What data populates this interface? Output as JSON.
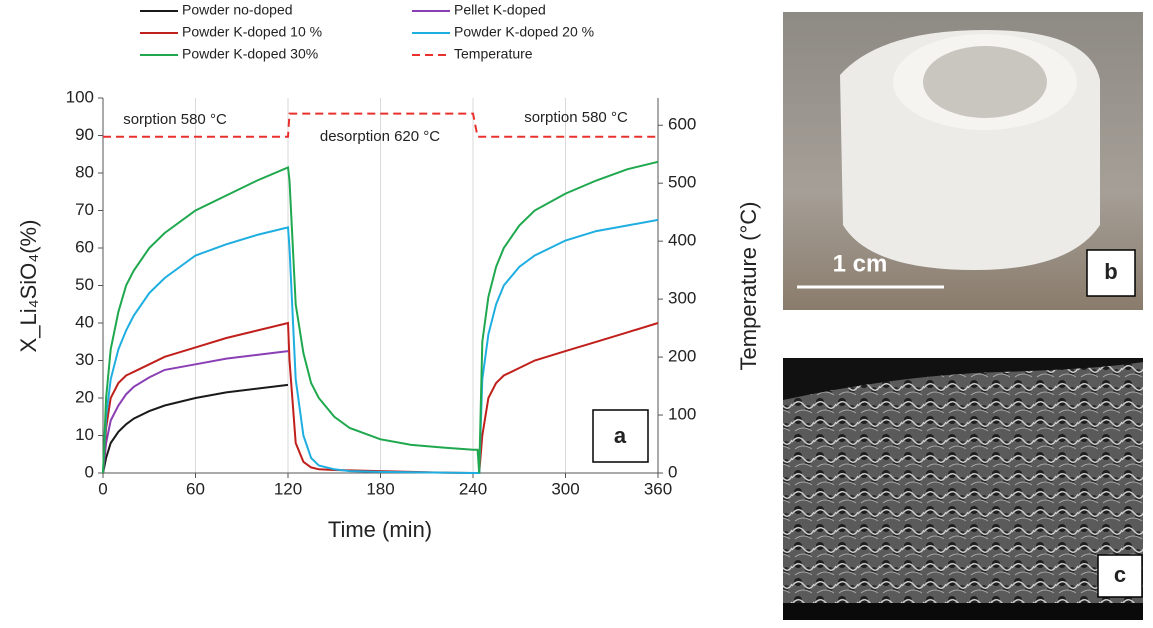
{
  "chart_data": {
    "type": "line",
    "x_label": "Time (min)",
    "y_label": "X_Li₄SiO₄(%)",
    "y2_label": "Temperature (°C)",
    "xlim": [
      0,
      360
    ],
    "xticks": [
      0,
      60,
      120,
      180,
      240,
      300,
      360
    ],
    "ylim": [
      0,
      100
    ],
    "yticks": [
      0,
      10,
      20,
      30,
      40,
      50,
      60,
      70,
      80,
      90,
      100
    ],
    "y2lim": [
      0,
      647
    ],
    "y2ticks": [
      0,
      100,
      200,
      300,
      400,
      500,
      600
    ],
    "grid": "x",
    "x": [
      0,
      2,
      5,
      10,
      15,
      20,
      30,
      40,
      60,
      80,
      100,
      120,
      121,
      125,
      130,
      135,
      140,
      150,
      160,
      180,
      200,
      220,
      240,
      243,
      244,
      246,
      250,
      255,
      260,
      270,
      280,
      300,
      320,
      340,
      360
    ],
    "series": [
      {
        "name": "Powder no-doped",
        "color": "#1a1a1a",
        "linestyle": "solid",
        "values": [
          0,
          4,
          8,
          11,
          13,
          14.5,
          16.5,
          18,
          20,
          21.5,
          22.5,
          23.5,
          null,
          null,
          null,
          null,
          null,
          null,
          null,
          null,
          null,
          null,
          null,
          null,
          null,
          null,
          null,
          null,
          null,
          null,
          null,
          null,
          null,
          null,
          null
        ]
      },
      {
        "name": "Pellet K-doped",
        "color": "#8a3fb5",
        "linestyle": "solid",
        "values": [
          0,
          8,
          14,
          18,
          21,
          23,
          25.5,
          27.5,
          29,
          30.5,
          31.5,
          32.5,
          null,
          null,
          null,
          null,
          null,
          null,
          null,
          null,
          null,
          null,
          null,
          null,
          null,
          null,
          null,
          null,
          null,
          null,
          null,
          null,
          null,
          null,
          null
        ]
      },
      {
        "name": "Powder K-doped 10 %",
        "color": "#c0201c",
        "linestyle": "solid",
        "values": [
          0,
          12,
          20,
          24,
          26,
          27,
          29,
          31,
          33.5,
          36,
          38,
          40,
          30,
          8,
          3,
          1.5,
          1,
          0.8,
          0.7,
          0.5,
          0.3,
          0.1,
          0,
          0,
          0,
          10,
          20,
          24,
          26,
          28,
          30,
          32.5,
          35,
          37.5,
          40
        ]
      },
      {
        "name": "Powder K-doped 20 %",
        "color": "#1eaee0",
        "linestyle": "solid",
        "values": [
          0,
          15,
          25,
          33,
          38,
          42,
          48,
          52,
          58,
          61,
          63.5,
          65.5,
          60,
          25,
          10,
          4,
          2,
          1,
          0.5,
          0.3,
          0.2,
          0.1,
          0,
          0,
          0,
          25,
          37,
          45,
          50,
          55,
          58,
          62,
          64.5,
          66,
          67.5
        ]
      },
      {
        "name": "Powder K-doped 30%",
        "color": "#1fa84e",
        "linestyle": "solid",
        "values": [
          0,
          20,
          33,
          43,
          50,
          54,
          60,
          64,
          70,
          74,
          78,
          81.5,
          78,
          45,
          32,
          24,
          20,
          15,
          12,
          9,
          7.5,
          6.8,
          6.2,
          6.2,
          0,
          35,
          47,
          55,
          60,
          66,
          70,
          74.5,
          78,
          81,
          83
        ]
      },
      {
        "name": "Temperature",
        "color": "#e8302c",
        "linestyle": "dashed",
        "axis": "y2",
        "values": [
          580,
          580,
          580,
          580,
          580,
          580,
          580,
          580,
          580,
          580,
          580,
          580,
          620,
          620,
          620,
          620,
          620,
          620,
          620,
          620,
          620,
          620,
          620,
          580,
          580,
          580,
          580,
          580,
          580,
          580,
          580,
          580,
          580,
          580,
          580
        ]
      }
    ],
    "annotations": [
      "sorption 580 °C",
      "desorption 620 °C",
      "sorption 580 °C"
    ],
    "panel_labels": [
      "a",
      "b",
      "c"
    ],
    "scale_bar": "1 cm"
  }
}
